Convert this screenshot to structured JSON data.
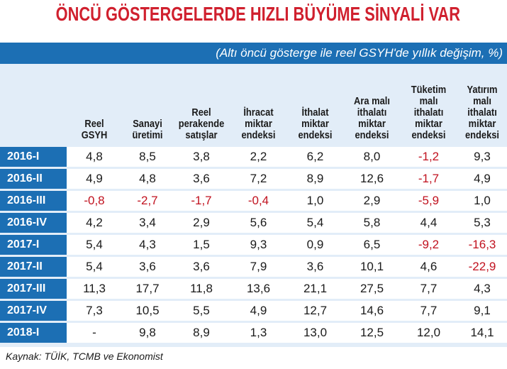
{
  "title": "ÖNCÜ GÖSTERGELERDE HIZLI BÜYÜME SİNYALİ VAR",
  "subtitle": "(Altı öncü gösterge ile reel GSYH'de yıllık değişim, %)",
  "columns": [
    [
      "Reel",
      "GSYH"
    ],
    [
      "Sanayi",
      "üretimi"
    ],
    [
      "Reel",
      "perakende",
      "satışlar"
    ],
    [
      "İhracat",
      "miktar",
      "endeksi"
    ],
    [
      "İthalat",
      "miktar",
      "endeksi"
    ],
    [
      "Ara malı",
      "ithalatı",
      "miktar",
      "endeksi"
    ],
    [
      "Tüketim",
      "malı",
      "ithalatı",
      "miktar",
      "endeksi"
    ],
    [
      "Yatırım",
      "malı",
      "ithalatı",
      "miktar",
      "endeksi"
    ]
  ],
  "rows": [
    {
      "label": "2016-I",
      "values": [
        "4,8",
        "8,5",
        "3,8",
        "2,2",
        "6,2",
        "8,0",
        "-1,2",
        "9,3"
      ]
    },
    {
      "label": "2016-II",
      "values": [
        "4,9",
        "4,8",
        "3,6",
        "7,2",
        "8,9",
        "12,6",
        "-1,7",
        "4,9"
      ]
    },
    {
      "label": "2016-III",
      "values": [
        "-0,8",
        "-2,7",
        "-1,7",
        "-0,4",
        "1,0",
        "2,9",
        "-5,9",
        "1,0"
      ]
    },
    {
      "label": "2016-IV",
      "values": [
        "4,2",
        "3,4",
        "2,9",
        "5,6",
        "5,4",
        "5,8",
        "4,4",
        "5,3"
      ]
    },
    {
      "label": "2017-I",
      "values": [
        "5,4",
        "4,3",
        "1,5",
        "9,3",
        "0,9",
        "6,5",
        "-9,2",
        "-16,3"
      ]
    },
    {
      "label": "2017-II",
      "values": [
        "5,4",
        "3,6",
        "3,6",
        "7,9",
        "3,6",
        "10,1",
        "4,6",
        "-22,9"
      ]
    },
    {
      "label": "2017-III",
      "values": [
        "11,3",
        "17,7",
        "11,8",
        "13,6",
        "21,1",
        "27,5",
        "7,7",
        "4,3"
      ]
    },
    {
      "label": "2017-IV",
      "values": [
        "7,3",
        "10,5",
        "5,5",
        "4,9",
        "12,7",
        "14,6",
        "7,7",
        "9,1"
      ]
    },
    {
      "label": "2018-I",
      "values": [
        "-",
        "9,8",
        "8,9",
        "1,3",
        "13,0",
        "12,5",
        "12,0",
        "14,1"
      ]
    }
  ],
  "source": "Kaynak: TÜİK, TCMB ve Ekonomist",
  "colors": {
    "title": "#d0202e",
    "band": "#1c6fb4",
    "table_background": "#e2edf8",
    "negative": "#c1121f"
  }
}
